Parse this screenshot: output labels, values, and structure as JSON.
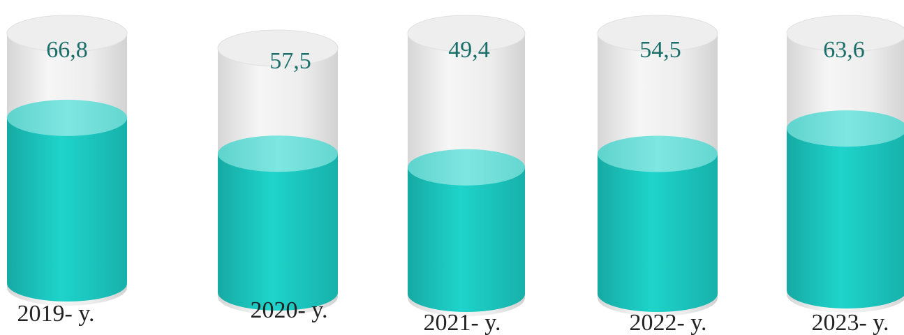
{
  "chart_data": {
    "type": "bar",
    "categories": [
      "2019- y.",
      "2020- y.",
      "2021- y.",
      "2022- y.",
      "2023- y."
    ],
    "values": [
      66.8,
      57.5,
      49.4,
      54.5,
      63.6
    ],
    "value_labels": [
      "66,8",
      "57,5",
      "49,4",
      "54,5",
      "63,6"
    ],
    "title": "",
    "xlabel": "",
    "ylabel": "",
    "style": "3d-cylinder",
    "colors": {
      "fill": "#1ccfc6",
      "fill_dark": "#15aba3",
      "top": "#76e4df",
      "glass": "#eeeeee",
      "glass_edge": "#dadada",
      "value_text": "#1b6f6a",
      "label_text": "#222222"
    }
  }
}
